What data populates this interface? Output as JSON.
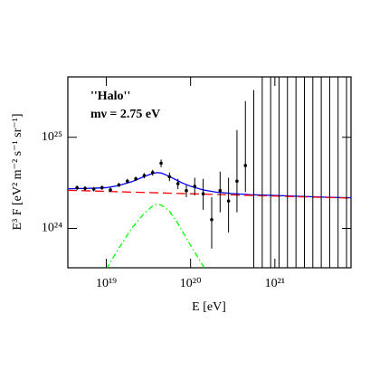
{
  "chart_data": {
    "type": "line",
    "xlabel": "E  [eV]",
    "ylabel": "E³ F  [eV² m⁻² s⁻¹ sr⁻¹]",
    "xscale": "log",
    "yscale": "log",
    "xlim": [
      3.5e+18,
      8e+21
    ],
    "ylim": [
      3.7e+23,
      4.6e+25
    ],
    "xticks": [
      {
        "value": 1e+19,
        "label": "10¹⁹"
      },
      {
        "value": 1e+20,
        "label": "10²⁰"
      },
      {
        "value": 1e+21,
        "label": "10²¹"
      }
    ],
    "yticks": [
      {
        "value": 1e+24,
        "label": "10²⁴"
      },
      {
        "value": 1e+25,
        "label": "10²⁵"
      }
    ],
    "series": [
      {
        "color": "#0000ff",
        "style": "solid",
        "x": [
          3.5e+18,
          5e+18,
          7e+18,
          1e+19,
          1.4e+19,
          2e+19,
          2.8e+19,
          3.5e+19,
          4e+19,
          4.5e+19,
          5e+19,
          6e+19,
          7e+19,
          8e+19,
          1e+20,
          1.4e+20,
          2e+20,
          3e+20,
          5e+20,
          1e+21,
          2e+21,
          4e+21,
          8e+21
        ],
        "values": [
          2.72e+24,
          2.74e+24,
          2.76e+24,
          2.8e+24,
          2.95e+24,
          3.25e+24,
          3.7e+24,
          4e+24,
          4.1e+24,
          4.05e+24,
          3.9e+24,
          3.6e+24,
          3.35e+24,
          3.15e+24,
          2.9e+24,
          2.65e+24,
          2.5e+24,
          2.42e+24,
          2.35e+24,
          2.3e+24,
          2.25e+24,
          2.2e+24,
          2.17e+24
        ]
      },
      {
        "name": "''Halo''",
        "color": "#ff0000",
        "style": "dashed",
        "x": [
          3.5e+18,
          1e+20,
          8e+21
        ],
        "values": [
          2.62e+24,
          2.4e+24,
          2.15e+24
        ]
      },
      {
        "name": "mν = 2.75 eV",
        "color": "#00ff00",
        "style": "dashdot",
        "x": [
          1e+19,
          1.4e+19,
          2e+19,
          2.8e+19,
          3.5e+19,
          4e+19,
          4.5e+19,
          5.6e+19,
          7e+19,
          1e+20,
          1.4e+20,
          1.6e+20
        ],
        "values": [
          3.6e+23,
          6e+23,
          1e+24,
          1.45e+24,
          1.75e+24,
          1.85e+24,
          1.8e+24,
          1.55e+24,
          1.15e+24,
          6.5e+23,
          3.9e+23,
          3.3e+23
        ]
      }
    ],
    "points": {
      "color": "#000000",
      "x": [
        4.5e+18,
        5.6e+18,
        7.1e+18,
        8.9e+18,
        1.12e+19,
        1.41e+19,
        1.78e+19,
        2.24e+19,
        2.82e+19,
        3.55e+19,
        4.47e+19,
        5.62e+19,
        7.08e+19,
        8.91e+19,
        1.12e+20,
        1.41e+20,
        1.78e+20,
        2.24e+20,
        2.82e+20,
        3.55e+20,
        4.47e+20,
        5.62e+20,
        7.08e+20,
        8.91e+20,
        1.12e+21,
        1.41e+21,
        1.78e+21,
        2.24e+21,
        2.82e+21,
        3.55e+21,
        4.47e+21,
        5.62e+21,
        7.08e+21
      ],
      "values": [
        2.8e+24,
        2.75e+24,
        2.7e+24,
        2.8e+24,
        2.65e+24,
        3e+24,
        3.3e+24,
        3.5e+24,
        3.8e+24,
        4.1e+24,
        5.2e+24,
        3.7e+24,
        3.1e+24,
        2.6e+24,
        2.9e+24,
        2.4e+24,
        1.25e+24,
        2.6e+24,
        2e+24,
        3.3e+24,
        4.9e+24,
        null,
        null,
        null,
        null,
        null,
        null,
        null,
        null,
        null,
        null,
        null,
        null
      ],
      "err_low": [
        2.65e+24,
        2.6e+24,
        2.55e+24,
        2.65e+24,
        2.5e+24,
        2.85e+24,
        3.1e+24,
        3.3e+24,
        3.55e+24,
        3.8e+24,
        4.7e+24,
        3.3e+24,
        2.7e+24,
        2.2e+24,
        2.3e+24,
        1.6e+24,
        6e+23,
        1.5e+24,
        9e+23,
        1.5e+24,
        2.5e+24,
        1e+23,
        1e+23,
        1e+23,
        1e+23,
        1e+23,
        1e+23,
        1e+23,
        1e+23,
        1e+23,
        1e+23,
        1e+23,
        1e+23
      ],
      "err_high": [
        2.95e+24,
        2.9e+24,
        2.85e+24,
        2.95e+24,
        2.8e+24,
        3.15e+24,
        3.5e+24,
        3.7e+24,
        4.05e+24,
        4.4e+24,
        5.7e+24,
        4.1e+24,
        3.5e+24,
        3e+24,
        3.6e+24,
        3.5e+24,
        2.2e+24,
        4.2e+24,
        3.6e+24,
        1.2e+25,
        2.5e+25,
        3.3e+25,
        1e+26,
        1e+26,
        1e+26,
        1e+26,
        1e+26,
        1e+26,
        1e+26,
        1e+26,
        1e+26,
        1e+26,
        1e+26
      ]
    }
  }
}
